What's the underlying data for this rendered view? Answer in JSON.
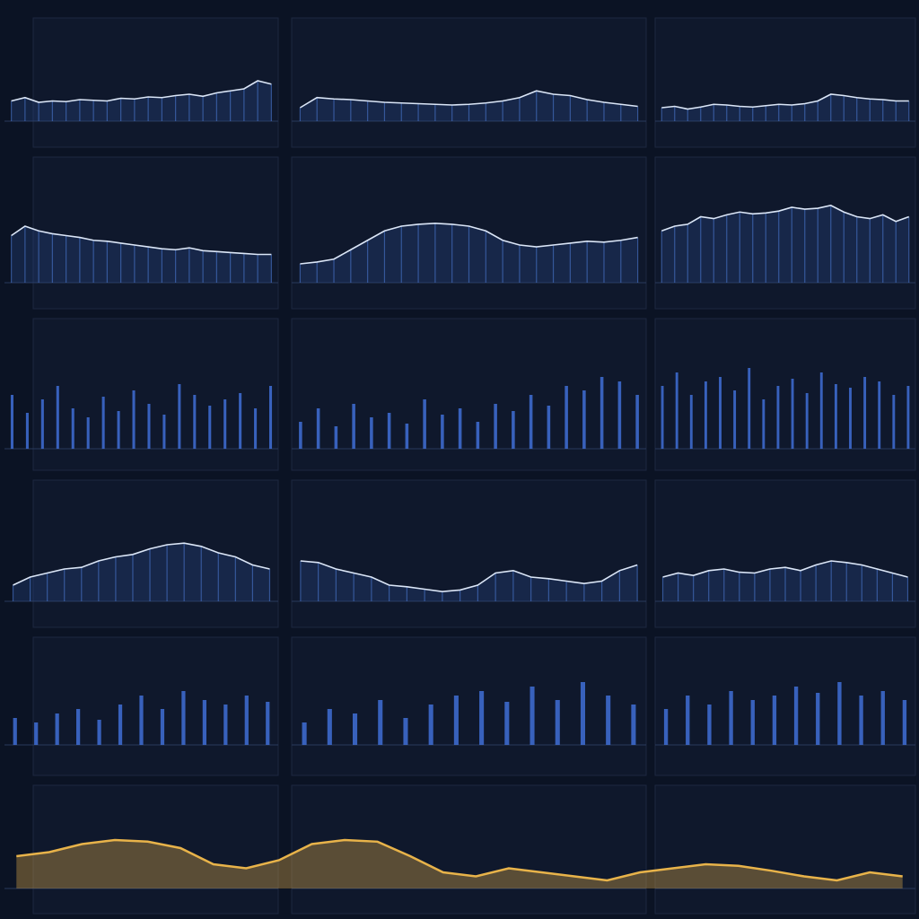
{
  "chart_data": [
    {
      "type": "line",
      "color": "#dbe6f7",
      "ylim": [
        0,
        100
      ],
      "values": [
        30,
        35,
        28,
        30,
        29,
        32,
        31,
        30,
        34,
        33,
        36,
        35,
        38,
        40,
        37,
        42,
        45,
        48,
        60,
        55
      ]
    },
    {
      "type": "line",
      "color": "#dbe6f7",
      "ylim": [
        0,
        100
      ],
      "values": [
        20,
        35,
        33,
        32,
        30,
        28,
        27,
        26,
        25,
        24,
        25,
        27,
        30,
        35,
        45,
        40,
        38,
        32,
        28,
        25,
        22
      ]
    },
    {
      "type": "line",
      "color": "#dbe6f7",
      "ylim": [
        0,
        100
      ],
      "values": [
        20,
        22,
        18,
        21,
        25,
        24,
        22,
        21,
        23,
        25,
        24,
        26,
        30,
        40,
        38,
        35,
        33,
        32,
        30,
        30
      ]
    },
    {
      "type": "line",
      "color": "#dbe6f7",
      "ylim": [
        0,
        100
      ],
      "values": [
        50,
        60,
        55,
        52,
        50,
        48,
        45,
        44,
        42,
        40,
        38,
        36,
        35,
        37,
        34,
        33,
        32,
        31,
        30,
        30
      ]
    },
    {
      "type": "line",
      "color": "#dbe6f7",
      "ylim": [
        0,
        100
      ],
      "values": [
        20,
        22,
        25,
        35,
        45,
        55,
        60,
        62,
        63,
        62,
        60,
        55,
        45,
        40,
        38,
        40,
        42,
        44,
        43,
        45,
        48
      ]
    },
    {
      "type": "line",
      "color": "#dbe6f7",
      "ylim": [
        0,
        100
      ],
      "values": [
        55,
        60,
        62,
        70,
        68,
        72,
        75,
        73,
        74,
        76,
        80,
        78,
        79,
        82,
        75,
        70,
        68,
        72,
        65,
        70
      ]
    },
    {
      "type": "bar",
      "color": "#3f6fd6",
      "ylim": [
        0,
        100
      ],
      "values": [
        60,
        40,
        55,
        70,
        45,
        35,
        58,
        42,
        65,
        50,
        38,
        72,
        60,
        48,
        55,
        62,
        45,
        70
      ]
    },
    {
      "type": "bar",
      "color": "#3f6fd6",
      "ylim": [
        0,
        100
      ],
      "values": [
        30,
        45,
        25,
        50,
        35,
        40,
        28,
        55,
        38,
        45,
        30,
        50,
        42,
        60,
        48,
        70,
        65,
        80,
        75,
        60
      ]
    },
    {
      "type": "bar",
      "color": "#3f6fd6",
      "ylim": [
        0,
        100
      ],
      "values": [
        70,
        85,
        60,
        75,
        80,
        65,
        90,
        55,
        70,
        78,
        62,
        85,
        72,
        68,
        80,
        75,
        60,
        70
      ]
    },
    {
      "type": "line",
      "color": "#dbe6f7",
      "ylim": [
        0,
        100
      ],
      "values": [
        20,
        30,
        35,
        40,
        42,
        50,
        55,
        58,
        65,
        70,
        72,
        68,
        60,
        55,
        45,
        40
      ]
    },
    {
      "type": "line",
      "color": "#dbe6f7",
      "ylim": [
        0,
        100
      ],
      "values": [
        50,
        48,
        40,
        35,
        30,
        20,
        18,
        15,
        12,
        14,
        20,
        35,
        38,
        30,
        28,
        25,
        22,
        25,
        38,
        45
      ]
    },
    {
      "type": "line",
      "color": "#dbe6f7",
      "ylim": [
        0,
        100
      ],
      "values": [
        30,
        35,
        32,
        38,
        40,
        36,
        35,
        40,
        42,
        38,
        45,
        50,
        48,
        45,
        40,
        35,
        30
      ]
    },
    {
      "type": "bar",
      "color": "#3f6fd6",
      "ylim": [
        0,
        100
      ],
      "values": [
        30,
        25,
        35,
        40,
        28,
        45,
        55,
        40,
        60,
        50,
        45,
        55,
        48
      ]
    },
    {
      "type": "bar",
      "color": "#3f6fd6",
      "ylim": [
        0,
        100
      ],
      "values": [
        25,
        40,
        35,
        50,
        30,
        45,
        55,
        60,
        48,
        65,
        50,
        70,
        55,
        45
      ]
    },
    {
      "type": "bar",
      "color": "#3f6fd6",
      "ylim": [
        0,
        100
      ],
      "values": [
        40,
        55,
        45,
        60,
        50,
        55,
        65,
        58,
        70,
        55,
        60,
        50
      ]
    },
    {
      "type": "area",
      "color": "#e8b34a",
      "ylim": [
        0,
        100
      ],
      "values": [
        40,
        45,
        55,
        60,
        58,
        50,
        30,
        25,
        35,
        55,
        60,
        58,
        40,
        20,
        15,
        25,
        20,
        15,
        10,
        20,
        25,
        30,
        28,
        22,
        15,
        10,
        20,
        15
      ]
    }
  ]
}
